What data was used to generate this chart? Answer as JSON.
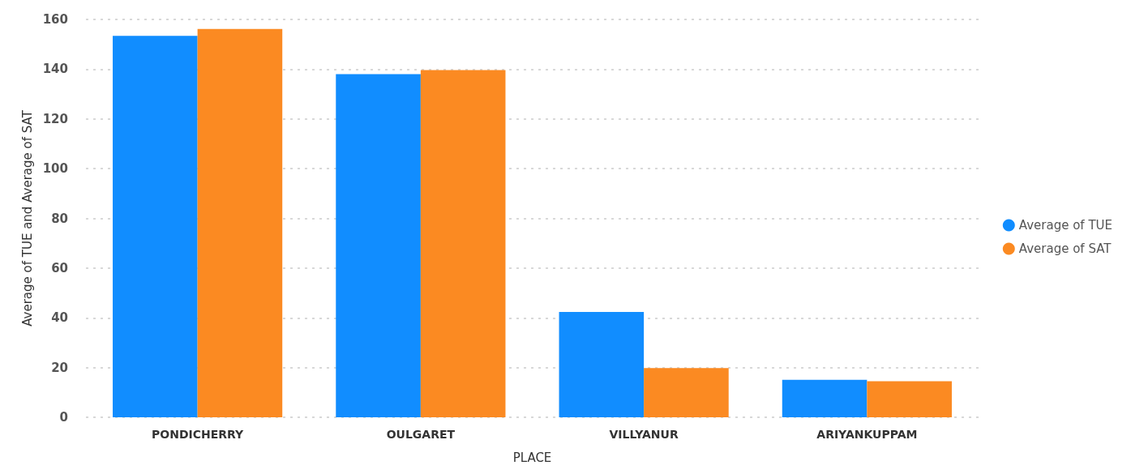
{
  "chart_data": {
    "type": "bar",
    "xlabel": "PLACE",
    "ylabel": "Average of TUE and Average of SAT",
    "categories": [
      "PONDICHERRY",
      "OULGARET",
      "VILLYANUR",
      "ARIYANKUPPAM"
    ],
    "series": [
      {
        "name": "Average of TUE",
        "color": "#118dff",
        "values": [
          153.4,
          138,
          42.4,
          15.1
        ]
      },
      {
        "name": "Average of SAT",
        "color": "#fb8a22",
        "values": [
          156.2,
          139.6,
          19.8,
          14.5
        ]
      }
    ],
    "ylim": [
      0,
      160
    ],
    "yticks": [
      0,
      20,
      40,
      60,
      80,
      100,
      120,
      140,
      160
    ],
    "grid": "y",
    "legend": "right"
  }
}
